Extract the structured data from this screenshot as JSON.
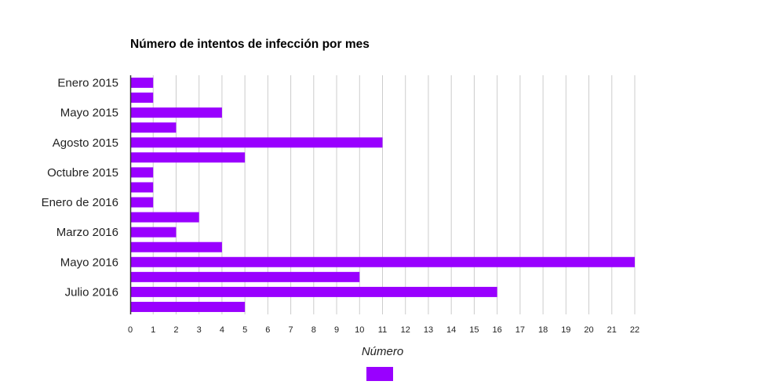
{
  "chart_data": {
    "type": "bar",
    "orientation": "horizontal",
    "title": "Número de intentos de infección por mes",
    "xlabel": "Número",
    "ylabel": "",
    "categories": [
      "Enero 2015",
      "",
      "Mayo 2015",
      "",
      "Agosto 2015",
      "",
      "Octubre 2015",
      "",
      "Enero de 2016",
      "",
      "Marzo 2016",
      "",
      "Mayo 2016",
      "",
      "Julio 2016",
      ""
    ],
    "values": [
      1,
      1,
      4,
      2,
      11,
      5,
      1,
      1,
      1,
      3,
      2,
      4,
      22,
      10,
      16,
      5
    ],
    "xlim": [
      0,
      22
    ],
    "xticks": [
      0,
      1,
      2,
      3,
      4,
      5,
      6,
      7,
      8,
      9,
      10,
      11,
      12,
      13,
      14,
      15,
      16,
      17,
      18,
      19,
      20,
      21,
      22
    ],
    "grid": true,
    "bar_color": "#9900ff",
    "grid_color": "#cccccc",
    "legend": {
      "position": "bottom",
      "entries": [
        ""
      ]
    }
  }
}
